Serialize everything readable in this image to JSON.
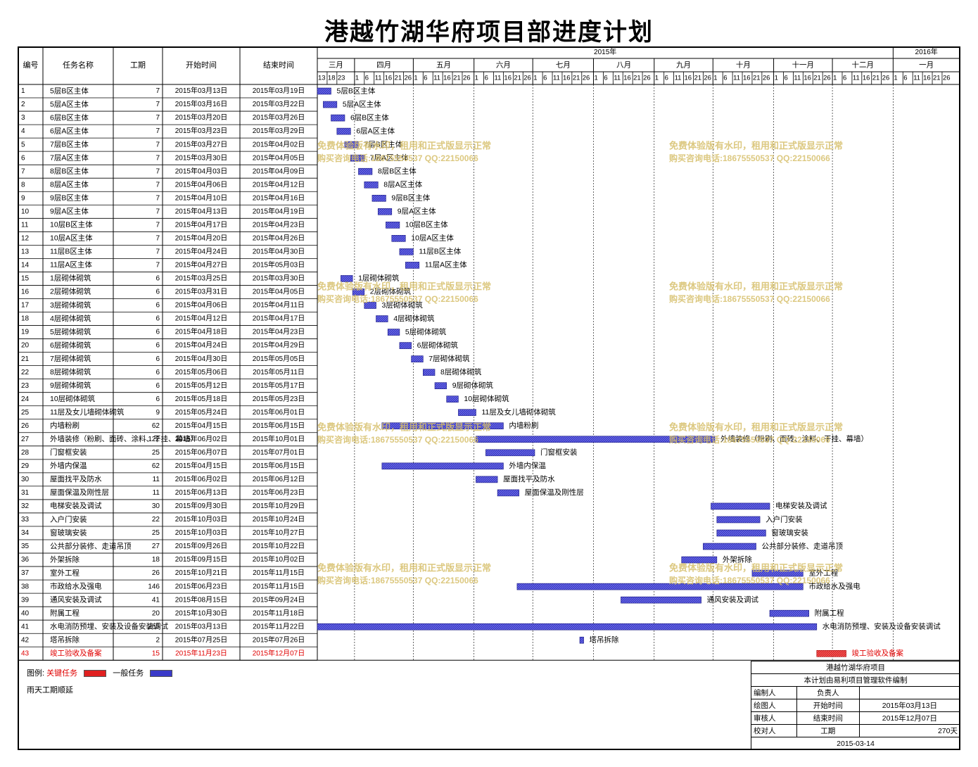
{
  "title": "港越竹湖华府项目部进度计划",
  "columns": {
    "id": "编号",
    "name": "任务名称",
    "dur": "工期",
    "start": "开始时间",
    "end": "结束时间"
  },
  "timeline": {
    "years": [
      {
        "label": "2015年",
        "from": "2015-03-13",
        "to": "2016-01-01"
      },
      {
        "label": "2016年",
        "from": "2016-01-01",
        "to": "2016-02-04"
      }
    ],
    "months": [
      {
        "label": "三月",
        "from": "2015-03-13",
        "to": "2015-04-01"
      },
      {
        "label": "四月",
        "from": "2015-04-01",
        "to": "2015-05-01"
      },
      {
        "label": "五月",
        "from": "2015-05-01",
        "to": "2015-06-01"
      },
      {
        "label": "六月",
        "from": "2015-06-01",
        "to": "2015-07-01"
      },
      {
        "label": "七月",
        "from": "2015-07-01",
        "to": "2015-08-01"
      },
      {
        "label": "八月",
        "from": "2015-08-01",
        "to": "2015-09-01"
      },
      {
        "label": "九月",
        "from": "2015-09-01",
        "to": "2015-10-01"
      },
      {
        "label": "十月",
        "from": "2015-10-01",
        "to": "2015-11-01"
      },
      {
        "label": "十一月",
        "from": "2015-11-01",
        "to": "2015-12-01"
      },
      {
        "label": "十二月",
        "from": "2015-12-01",
        "to": "2016-01-01"
      },
      {
        "label": "一月",
        "from": "2016-01-01",
        "to": "2016-02-04"
      }
    ],
    "day_ticks": [
      13,
      18,
      23,
      1,
      6,
      11,
      16,
      21,
      26
    ],
    "start": "2015-03-13",
    "end": "2016-02-04"
  },
  "chart_data": {
    "type": "gantt",
    "title": "港越竹湖华府项目部进度计划",
    "x_range": [
      "2015-03-13",
      "2016-02-04"
    ],
    "tasks": [
      {
        "id": 1,
        "name": "5层B区主体",
        "duration": 7,
        "start": "2015年03月13日",
        "end": "2015年03月19日",
        "critical": false
      },
      {
        "id": 2,
        "name": "5层A区主体",
        "duration": 7,
        "start": "2015年03月16日",
        "end": "2015年03月22日",
        "critical": false
      },
      {
        "id": 3,
        "name": "6层B区主体",
        "duration": 7,
        "start": "2015年03月20日",
        "end": "2015年03月26日",
        "critical": false
      },
      {
        "id": 4,
        "name": "6层A区主体",
        "duration": 7,
        "start": "2015年03月23日",
        "end": "2015年03月29日",
        "critical": false
      },
      {
        "id": 5,
        "name": "7层B区主体",
        "duration": 7,
        "start": "2015年03月27日",
        "end": "2015年04月02日",
        "critical": false
      },
      {
        "id": 6,
        "name": "7层A区主体",
        "duration": 7,
        "start": "2015年03月30日",
        "end": "2015年04月05日",
        "critical": false
      },
      {
        "id": 7,
        "name": "8层B区主体",
        "duration": 7,
        "start": "2015年04月03日",
        "end": "2015年04月09日",
        "critical": false
      },
      {
        "id": 8,
        "name": "8层A区主体",
        "duration": 7,
        "start": "2015年04月06日",
        "end": "2015年04月12日",
        "critical": false
      },
      {
        "id": 9,
        "name": "9层B区主体",
        "duration": 7,
        "start": "2015年04月10日",
        "end": "2015年04月16日",
        "critical": false
      },
      {
        "id": 10,
        "name": "9层A区主体",
        "duration": 7,
        "start": "2015年04月13日",
        "end": "2015年04月19日",
        "critical": false
      },
      {
        "id": 11,
        "name": "10层B区主体",
        "duration": 7,
        "start": "2015年04月17日",
        "end": "2015年04月23日",
        "critical": false
      },
      {
        "id": 12,
        "name": "10层A区主体",
        "duration": 7,
        "start": "2015年04月20日",
        "end": "2015年04月26日",
        "critical": false
      },
      {
        "id": 13,
        "name": "11层B区主体",
        "duration": 7,
        "start": "2015年04月24日",
        "end": "2015年04月30日",
        "critical": false
      },
      {
        "id": 14,
        "name": "11层A区主体",
        "duration": 7,
        "start": "2015年04月27日",
        "end": "2015年05月03日",
        "critical": false
      },
      {
        "id": 15,
        "name": "1层砌体砌筑",
        "duration": 6,
        "start": "2015年03月25日",
        "end": "2015年03月30日",
        "critical": false
      },
      {
        "id": 16,
        "name": "2层砌体砌筑",
        "duration": 6,
        "start": "2015年03月31日",
        "end": "2015年04月05日",
        "critical": false
      },
      {
        "id": 17,
        "name": "3层砌体砌筑",
        "duration": 6,
        "start": "2015年04月06日",
        "end": "2015年04月11日",
        "critical": false
      },
      {
        "id": 18,
        "name": "4层砌体砌筑",
        "duration": 6,
        "start": "2015年04月12日",
        "end": "2015年04月17日",
        "critical": false
      },
      {
        "id": 19,
        "name": "5层砌体砌筑",
        "duration": 6,
        "start": "2015年04月18日",
        "end": "2015年04月23日",
        "critical": false
      },
      {
        "id": 20,
        "name": "6层砌体砌筑",
        "duration": 6,
        "start": "2015年04月24日",
        "end": "2015年04月29日",
        "critical": false
      },
      {
        "id": 21,
        "name": "7层砌体砌筑",
        "duration": 6,
        "start": "2015年04月30日",
        "end": "2015年05月05日",
        "critical": false
      },
      {
        "id": 22,
        "name": "8层砌体砌筑",
        "duration": 6,
        "start": "2015年05月06日",
        "end": "2015年05月11日",
        "critical": false
      },
      {
        "id": 23,
        "name": "9层砌体砌筑",
        "duration": 6,
        "start": "2015年05月12日",
        "end": "2015年05月17日",
        "critical": false
      },
      {
        "id": 24,
        "name": "10层砌体砌筑",
        "duration": 6,
        "start": "2015年05月18日",
        "end": "2015年05月23日",
        "critical": false
      },
      {
        "id": 25,
        "name": "11层及女儿墙砌体砌筑",
        "duration": 9,
        "start": "2015年05月24日",
        "end": "2015年06月01日",
        "critical": false
      },
      {
        "id": 26,
        "name": "内墙粉刷",
        "duration": 62,
        "start": "2015年04月15日",
        "end": "2015年06月15日",
        "critical": false
      },
      {
        "id": 27,
        "name": "外墙装修（粉刷、面砖、涂料、干挂、幕墙）",
        "duration": 122,
        "start": "2015年06月02日",
        "end": "2015年10月01日",
        "critical": false
      },
      {
        "id": 28,
        "name": "门窗框安装",
        "duration": 25,
        "start": "2015年06月07日",
        "end": "2015年07月01日",
        "critical": false
      },
      {
        "id": 29,
        "name": "外墙内保温",
        "duration": 62,
        "start": "2015年04月15日",
        "end": "2015年06月15日",
        "critical": false
      },
      {
        "id": 30,
        "name": "屋面找平及防水",
        "duration": 11,
        "start": "2015年06月02日",
        "end": "2015年06月12日",
        "critical": false
      },
      {
        "id": 31,
        "name": "屋面保温及刚性层",
        "duration": 11,
        "start": "2015年06月13日",
        "end": "2015年06月23日",
        "critical": false
      },
      {
        "id": 32,
        "name": "电梯安装及调试",
        "duration": 30,
        "start": "2015年09月30日",
        "end": "2015年10月29日",
        "critical": false
      },
      {
        "id": 33,
        "name": "入户门安装",
        "duration": 22,
        "start": "2015年10月03日",
        "end": "2015年10月24日",
        "critical": false
      },
      {
        "id": 34,
        "name": "窗玻璃安装",
        "duration": 25,
        "start": "2015年10月03日",
        "end": "2015年10月27日",
        "critical": false
      },
      {
        "id": 35,
        "name": "公共部分装修、走道吊顶",
        "duration": 27,
        "start": "2015年09月26日",
        "end": "2015年10月22日",
        "critical": false
      },
      {
        "id": 36,
        "name": "外架拆除",
        "duration": 18,
        "start": "2015年09月15日",
        "end": "2015年10月02日",
        "critical": false
      },
      {
        "id": 37,
        "name": "室外工程",
        "duration": 26,
        "start": "2015年10月21日",
        "end": "2015年11月15日",
        "critical": false
      },
      {
        "id": 38,
        "name": "市政给水及强电",
        "duration": 146,
        "start": "2015年06月23日",
        "end": "2015年11月15日",
        "critical": false
      },
      {
        "id": 39,
        "name": "通风安装及调试",
        "duration": 41,
        "start": "2015年08月15日",
        "end": "2015年09月24日",
        "critical": false
      },
      {
        "id": 40,
        "name": "附属工程",
        "duration": 20,
        "start": "2015年10月30日",
        "end": "2015年11月18日",
        "critical": false
      },
      {
        "id": 41,
        "name": "水电消防预埋、安装及设备安装调试",
        "duration": 255,
        "start": "2015年03月13日",
        "end": "2015年11月22日",
        "critical": false
      },
      {
        "id": 42,
        "name": "塔吊拆除",
        "duration": 2,
        "start": "2015年07月25日",
        "end": "2015年07月26日",
        "critical": false
      },
      {
        "id": 43,
        "name": "竣工验收及备案",
        "duration": 15,
        "start": "2015年11月23日",
        "end": "2015年12月07日",
        "critical": true
      }
    ]
  },
  "colors": {
    "general": "#3a3ac8",
    "critical": "#e02020",
    "critical_text": "#e00000",
    "watermark": "#d6bf6a",
    "grid": "#000000"
  },
  "legend": {
    "label": "图例:",
    "critical": "关键任务",
    "general": "一般任务",
    "note": "雨天工期顺延"
  },
  "watermark": {
    "line1": "免费体验版有水印，租用和正式版显示正常",
    "line2": "购买咨询电话:18675550537 QQ:22150066"
  },
  "title_block": {
    "project": "港越竹湖华府项目",
    "software": "本计划由易利项目管理软件编制",
    "editor_label": "编制人",
    "owner_label": "负责人",
    "drafter_label": "绘图人",
    "start_label": "开始时间",
    "start_value": "2015年03月13日",
    "reviewer_label": "审核人",
    "end_label": "结束时间",
    "end_value": "2015年12月07日",
    "checker_label": "校对人",
    "duration_label": "工期",
    "duration_value": "270天",
    "date": "2015-03-14"
  }
}
